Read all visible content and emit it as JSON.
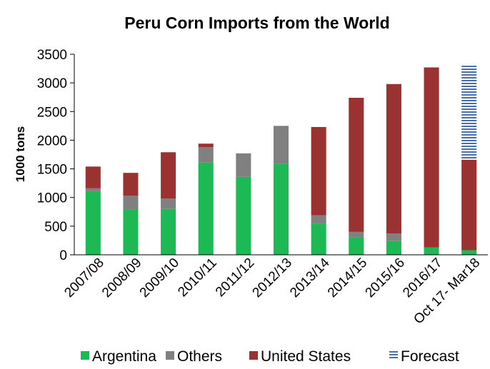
{
  "chart_data": {
    "type": "bar",
    "stacked": true,
    "title": "Peru Corn Imports from the World",
    "xlabel": "",
    "ylabel": "1000 tons",
    "ylim": [
      0,
      3500
    ],
    "yticks": [
      0,
      500,
      1000,
      1500,
      2000,
      2500,
      3000,
      3500
    ],
    "grid": false,
    "legend_position": "bottom",
    "categories": [
      "2007/08",
      "2008/09",
      "2009/10",
      "2010/11",
      "2011/12",
      "2012/13",
      "2013/14",
      "2014/15",
      "2015/16",
      "2016/17",
      "Oct 17- Mar18"
    ],
    "series": [
      {
        "name": "Argentina",
        "color": "#1db954",
        "values": [
          1110,
          790,
          800,
          1610,
          1360,
          1590,
          540,
          300,
          240,
          130,
          80
        ]
      },
      {
        "name": "Others",
        "color": "#808080",
        "values": [
          50,
          240,
          180,
          270,
          410,
          660,
          150,
          100,
          130,
          0,
          0
        ]
      },
      {
        "name": "United States",
        "color": "#9b3232",
        "values": [
          380,
          400,
          810,
          60,
          0,
          0,
          1540,
          2340,
          2610,
          3140,
          1580
        ]
      },
      {
        "name": "Forecast",
        "color": "#4a6fa5",
        "pattern": "horizontal-stripes",
        "values": [
          0,
          0,
          0,
          0,
          0,
          0,
          0,
          0,
          0,
          0,
          1640
        ]
      }
    ]
  }
}
